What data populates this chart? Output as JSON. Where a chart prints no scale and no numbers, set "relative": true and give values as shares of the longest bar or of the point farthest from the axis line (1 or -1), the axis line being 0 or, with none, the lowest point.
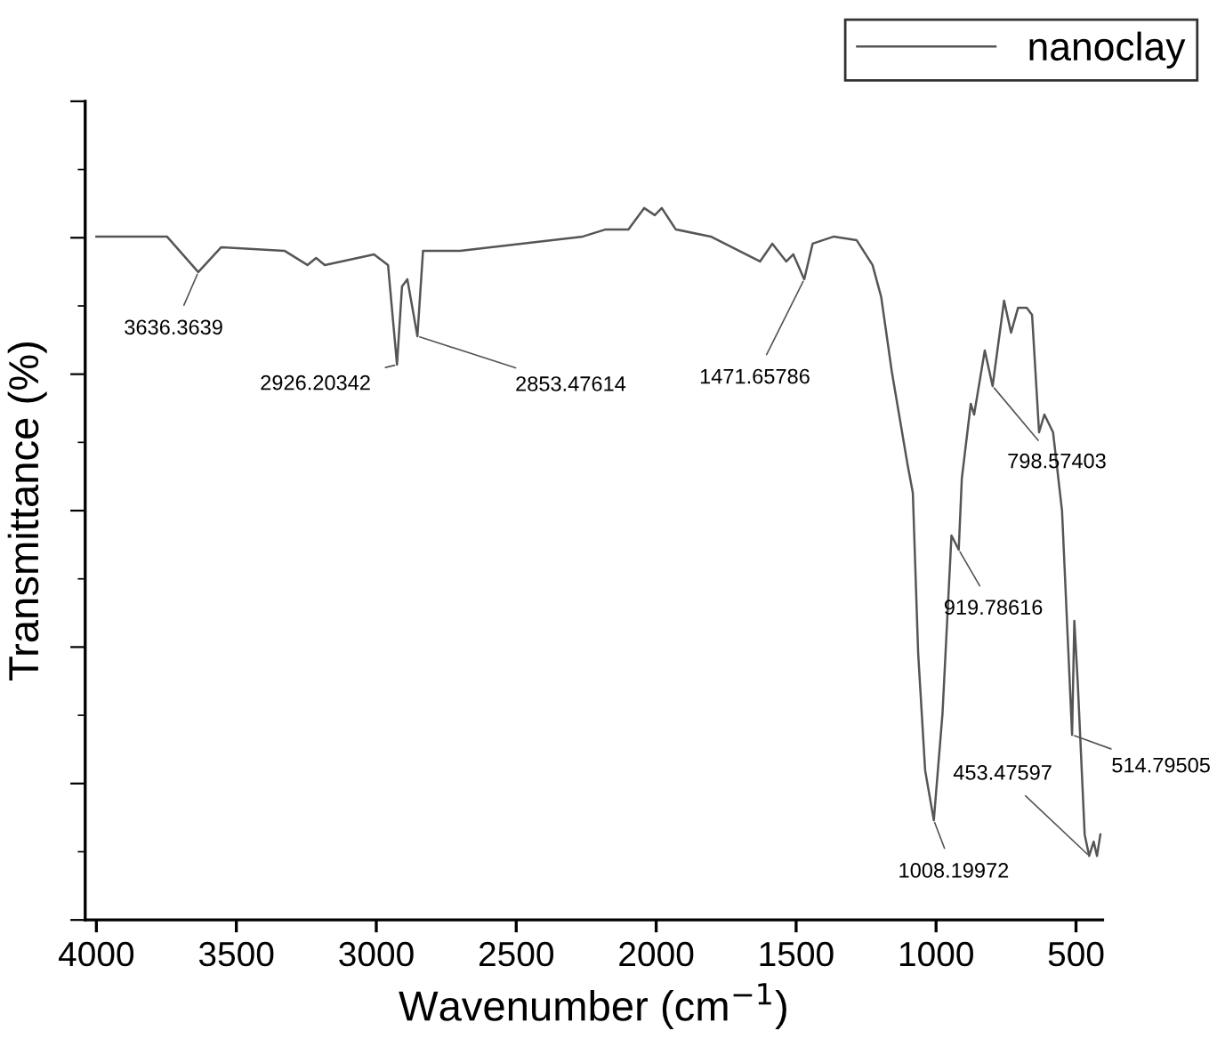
{
  "chart_data": {
    "type": "line",
    "xlabel": "Wavenumber (cm$^{−1}$)",
    "ylabel": "Transmittance (%)",
    "relative": true,
    "xlim": [
      4040,
      405
    ],
    "xticks": [
      4000,
      3500,
      3000,
      2500,
      2000,
      1500,
      1000,
      500
    ],
    "grid": false,
    "legend": "top right",
    "marker": "none",
    "line_style": "solid",
    "series": [
      {
        "name": "nanoclay",
        "color": "#555555",
        "x": [
          4000,
          3748,
          3636,
          3554,
          3328,
          3246,
          3215,
          3184,
          3008,
          2958,
          2926,
          2908,
          2889,
          2853,
          2833,
          2701,
          2262,
          2180,
          2099,
          2043,
          2005,
          1980,
          1930,
          1805,
          1629,
          1585,
          1535,
          1510,
          1471,
          1441,
          1365,
          1284,
          1227,
          1196,
          1158,
          1102,
          1083,
          1064,
          1039,
          1008,
          977,
          945,
          919,
          908,
          876,
          864,
          826,
          798,
          757,
          732,
          707,
          676,
          657,
          632,
          613,
          582,
          550,
          514,
          506,
          494,
          469,
          453,
          437,
          425,
          413
        ],
        "values": [
          0.96,
          0.96,
          0.91,
          0.945,
          0.94,
          0.92,
          0.93,
          0.92,
          0.935,
          0.92,
          0.78,
          0.89,
          0.9,
          0.82,
          0.94,
          0.94,
          0.96,
          0.97,
          0.97,
          1.0,
          0.99,
          1.0,
          0.97,
          0.96,
          0.925,
          0.95,
          0.925,
          0.935,
          0.9,
          0.95,
          0.96,
          0.955,
          0.92,
          0.875,
          0.77,
          0.64,
          0.6,
          0.375,
          0.21,
          0.14,
          0.29,
          0.54,
          0.52,
          0.62,
          0.725,
          0.71,
          0.8,
          0.75,
          0.87,
          0.825,
          0.86,
          0.86,
          0.85,
          0.685,
          0.71,
          0.685,
          0.575,
          0.26,
          0.42,
          0.335,
          0.12,
          0.09,
          0.11,
          0.09,
          0.12
        ]
      }
    ],
    "annotations": [
      {
        "text": "3636.3639",
        "x": 3636,
        "y": 0.91
      },
      {
        "text": "2926.20342",
        "x": 2926,
        "y": 0.78
      },
      {
        "text": "2853.47614",
        "x": 2853,
        "y": 0.82
      },
      {
        "text": "1471.65786",
        "x": 1471,
        "y": 0.9
      },
      {
        "text": "1008.19972",
        "x": 1008,
        "y": 0.14
      },
      {
        "text": "919.78616",
        "x": 919,
        "y": 0.52
      },
      {
        "text": "798.57403",
        "x": 798,
        "y": 0.75
      },
      {
        "text": "514.79505",
        "x": 514,
        "y": 0.26
      },
      {
        "text": "453.47597",
        "x": 453,
        "y": 0.09
      }
    ]
  }
}
